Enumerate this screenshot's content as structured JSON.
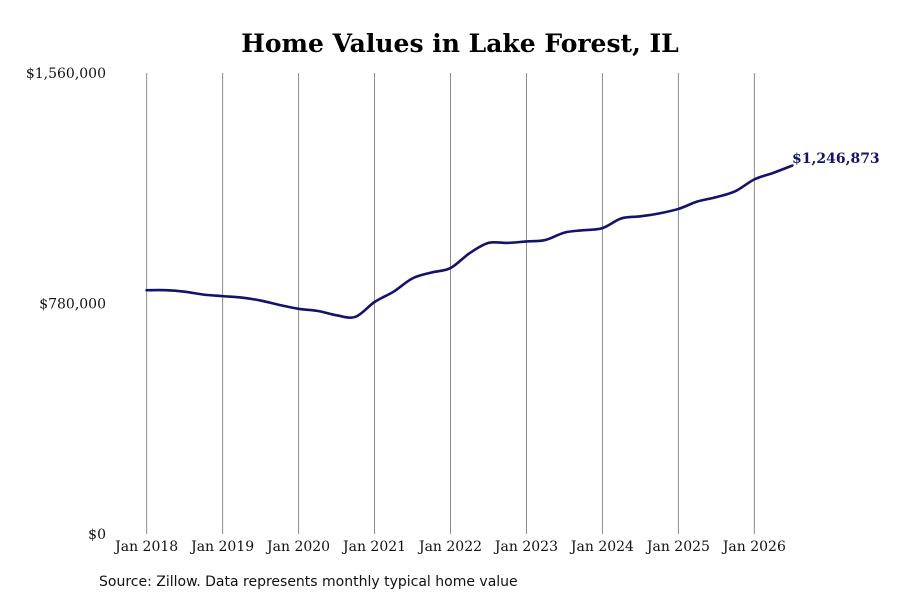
{
  "chart_data": {
    "type": "line",
    "title": "Home Values in Lake Forest, IL",
    "xlabel": "",
    "ylabel": "",
    "x_ticks": [
      "Jan 2018",
      "Jan 2019",
      "Jan 2020",
      "Jan 2021",
      "Jan 2022",
      "Jan 2023",
      "Jan 2024",
      "Jan 2025",
      "Jan 2026"
    ],
    "y_ticks": [
      "$0",
      "$780,000",
      "$1,560,000"
    ],
    "ylim": [
      0,
      1560000
    ],
    "xlim": [
      "2017-08",
      "2026-09"
    ],
    "grid": "vertical",
    "line_color": "#14126b",
    "end_label": "$1,246,873",
    "series": [
      {
        "values": [
          {
            "x": "2018-01",
            "y": 825000
          },
          {
            "x": "2018-04",
            "y": 825000
          },
          {
            "x": "2018-07",
            "y": 820000
          },
          {
            "x": "2018-10",
            "y": 810000
          },
          {
            "x": "2019-01",
            "y": 805000
          },
          {
            "x": "2019-04",
            "y": 800000
          },
          {
            "x": "2019-07",
            "y": 790000
          },
          {
            "x": "2019-10",
            "y": 775000
          },
          {
            "x": "2020-01",
            "y": 762000
          },
          {
            "x": "2020-04",
            "y": 755000
          },
          {
            "x": "2020-07",
            "y": 740000
          },
          {
            "x": "2020-10",
            "y": 735000
          },
          {
            "x": "2021-01",
            "y": 785000
          },
          {
            "x": "2021-04",
            "y": 820000
          },
          {
            "x": "2021-07",
            "y": 865000
          },
          {
            "x": "2021-10",
            "y": 885000
          },
          {
            "x": "2022-01",
            "y": 900000
          },
          {
            "x": "2022-04",
            "y": 950000
          },
          {
            "x": "2022-07",
            "y": 985000
          },
          {
            "x": "2022-10",
            "y": 985000
          },
          {
            "x": "2023-01",
            "y": 990000
          },
          {
            "x": "2023-04",
            "y": 995000
          },
          {
            "x": "2023-07",
            "y": 1020000
          },
          {
            "x": "2023-10",
            "y": 1028000
          },
          {
            "x": "2024-01",
            "y": 1035000
          },
          {
            "x": "2024-04",
            "y": 1068000
          },
          {
            "x": "2024-07",
            "y": 1075000
          },
          {
            "x": "2024-10",
            "y": 1085000
          },
          {
            "x": "2025-01",
            "y": 1100000
          },
          {
            "x": "2025-04",
            "y": 1125000
          },
          {
            "x": "2025-07",
            "y": 1140000
          },
          {
            "x": "2025-10",
            "y": 1160000
          },
          {
            "x": "2026-01",
            "y": 1200000
          },
          {
            "x": "2026-04",
            "y": 1222000
          },
          {
            "x": "2026-07",
            "y": 1246873
          }
        ]
      }
    ]
  },
  "footer": {
    "source": "Source: Zillow. Data represents monthly typical home value"
  }
}
